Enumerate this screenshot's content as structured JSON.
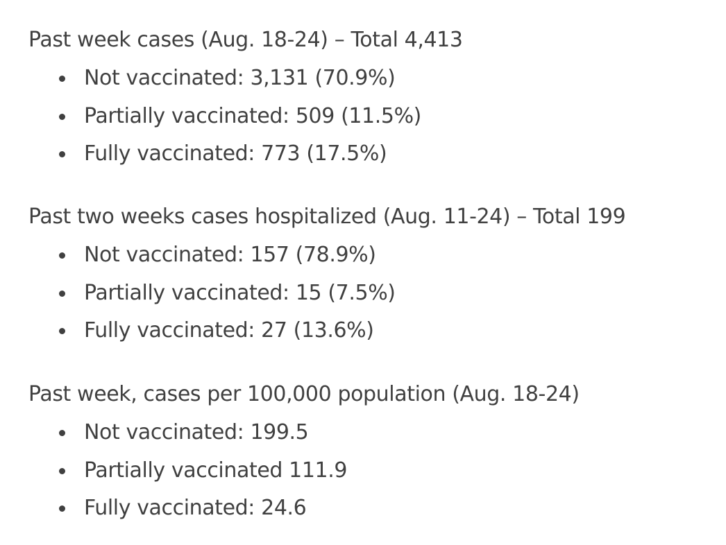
{
  "sections": [
    {
      "heading": "Past week cases (Aug. 18-24) – Total 4,413",
      "items": [
        "Not vaccinated: 3,131 (70.9%)",
        "Partially vaccinated: 509 (11.5%)",
        "Fully vaccinated: 773 (17.5%)"
      ]
    },
    {
      "heading": "Past two weeks cases hospitalized (Aug. 11-24) – Total 199",
      "items": [
        "Not vaccinated: 157 (78.9%)",
        "Partially vaccinated: 15 (7.5%)",
        "Fully vaccinated: 27 (13.6%)"
      ]
    },
    {
      "heading": "Past week, cases per 100,000 population (Aug. 18-24)",
      "items": [
        "Not vaccinated: 199.5",
        "Partially vaccinated 111.9",
        "Fully vaccinated: 24.6"
      ]
    }
  ]
}
